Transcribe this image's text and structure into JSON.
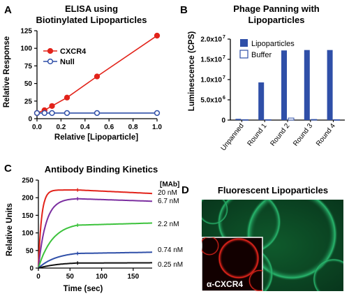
{
  "panels": {
    "A": "A",
    "B": "B",
    "C": "C",
    "D": "D"
  },
  "colors": {
    "red": "#e2231a",
    "blue": "#2f4fa8",
    "purple": "#7b2fa0",
    "green": "#3cc23c",
    "black": "#111111",
    "fluor": "#1f7a4a"
  },
  "chart_data": [
    {
      "panel": "A",
      "type": "line",
      "title_lines": [
        "ELISA using",
        "Biotinylated Lipoparticles"
      ],
      "xlabel": "Relative [Lipoparticle]",
      "ylabel": "Relative Response",
      "xlim": [
        0,
        1.0
      ],
      "ylim": [
        0,
        125
      ],
      "xticks": [
        "0.0",
        "0.2",
        "0.4",
        "0.6",
        "0.8",
        "1.0"
      ],
      "yticks": [
        "0",
        "25",
        "50",
        "75",
        "100",
        "125"
      ],
      "legend_position": "top-right",
      "series": [
        {
          "name": "CXCR4",
          "marker": "filled-circle",
          "x": [
            0,
            0.0625,
            0.125,
            0.25,
            0.5,
            1.0
          ],
          "y": [
            8,
            12,
            18,
            30,
            60,
            118
          ]
        },
        {
          "name": "Null",
          "marker": "open-circle",
          "x": [
            0,
            0.0625,
            0.125,
            0.25,
            0.5,
            1.0
          ],
          "y": [
            8,
            8,
            8,
            8,
            8,
            8
          ]
        }
      ]
    },
    {
      "panel": "B",
      "type": "bar",
      "title_lines": [
        "Phage Panning with",
        "Lipoparticles"
      ],
      "ylabel": "Luminescence (CPS)",
      "categories": [
        "Unpanned",
        "Round 1",
        "Round 2",
        "Round 3",
        "Round 4"
      ],
      "ylim": [
        0,
        20000000
      ],
      "yticks": [
        "0",
        "5.0x10",
        "1.0x10",
        "1.5x10",
        "2.0x10"
      ],
      "ytick_exp": [
        "",
        "6",
        "7",
        "7",
        "7"
      ],
      "legend_position": "top-right",
      "series": [
        {
          "name": "Lipoparticles",
          "fill": "solid",
          "values": [
            300000,
            9300000,
            17200000,
            17300000,
            17300000
          ]
        },
        {
          "name": "Buffer",
          "fill": "open",
          "values": [
            100000,
            100000,
            500000,
            150000,
            100000
          ]
        }
      ]
    },
    {
      "panel": "C",
      "type": "line",
      "title": "Antibody Binding Kinetics",
      "xlabel": "Time (sec)",
      "ylabel": "Relative Units",
      "xlim": [
        0,
        180
      ],
      "ylim": [
        0,
        250
      ],
      "xticks": [
        "0",
        "50",
        "100",
        "150"
      ],
      "yticks": [
        "0",
        "50",
        "100",
        "150",
        "200",
        "250"
      ],
      "legend_header": "[MAb]",
      "series": [
        {
          "name": "20 nM",
          "plateau": 222,
          "end": 212,
          "k": 0.2
        },
        {
          "name": "6.7 nM",
          "plateau": 198,
          "end": 190,
          "k": 0.085
        },
        {
          "name": "2.2 nM",
          "plateau": 130,
          "end": 128,
          "k": 0.045
        },
        {
          "name": "0.74 nM",
          "plateau": 47,
          "end": 45,
          "k": 0.035
        },
        {
          "name": "0.25 nM",
          "plateau": 17,
          "end": 15,
          "k": 0.03
        }
      ],
      "association_end": 62
    }
  ],
  "image_panel": {
    "title": "Fluorescent Lipoparticles",
    "inset_label": "α-CXCR4"
  }
}
